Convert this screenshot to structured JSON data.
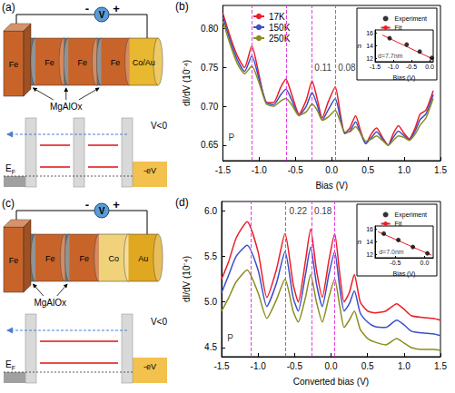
{
  "diagrams": [
    {
      "letter": "(a)",
      "voltage": {
        "symbol": "V",
        "minus": "-",
        "plus": "+"
      },
      "layers": [
        {
          "label": "Fe",
          "color": "#c8642a"
        },
        {
          "label": null,
          "color": "#6e6e6e"
        },
        {
          "label": "Fe",
          "color": "#c8642a"
        },
        {
          "label": null,
          "color": "#6e6e6e"
        },
        {
          "label": "Fe",
          "color": "#c8642a"
        },
        {
          "label": null,
          "color": "#6e6e6e"
        },
        {
          "label": "Fe",
          "color": "#c8642a"
        },
        {
          "label": "Co/Au",
          "color": "#e8b830"
        }
      ],
      "barrier_label": "MgAlOx",
      "energy": {
        "bias": "V<0",
        "shift": "-eV",
        "fermi": {
          "text": "E",
          "subscript": "F"
        }
      }
    },
    {
      "letter": "(c)",
      "voltage": {
        "symbol": "V",
        "minus": "-",
        "plus": "+"
      },
      "layers": [
        {
          "label": "Fe",
          "color": "#c8642a"
        },
        {
          "label": null,
          "color": "#6e6e6e"
        },
        {
          "label": "Fe",
          "color": "#c8642a"
        },
        {
          "label": null,
          "color": "#6e6e6e"
        },
        {
          "label": "Fe",
          "color": "#c8642a"
        },
        {
          "label": "Co",
          "color": "#f0d27a"
        },
        {
          "label": "Au",
          "color": "#e0a820"
        }
      ],
      "barrier_label": "MgAlOx",
      "energy": {
        "bias": "V<0",
        "shift": "-eV",
        "fermi": {
          "text": "E",
          "subscript": "F"
        }
      }
    }
  ],
  "chart_data": [
    {
      "letter": "(b)",
      "type": "line",
      "x_label": "Bias (V)",
      "y_label": "dI/dV (10⁻⁴)",
      "x": [
        -1.5,
        -1.4,
        -1.3,
        -1.2,
        -1.1,
        -1.0,
        -0.9,
        -0.8,
        -0.7,
        -0.63,
        -0.55,
        -0.45,
        -0.35,
        -0.27,
        -0.2,
        -0.13,
        -0.05,
        0.05,
        0.12,
        0.18,
        0.25,
        0.33,
        0.4,
        0.47,
        0.55,
        0.62,
        0.7,
        0.78,
        0.85,
        0.92,
        1.0,
        1.07,
        1.15,
        1.22,
        1.3,
        1.4
      ],
      "series": [
        {
          "name": "17K",
          "color": "#ee1c24",
          "values": [
            0.82,
            0.79,
            0.765,
            0.75,
            0.778,
            0.74,
            0.705,
            0.705,
            0.725,
            0.735,
            0.715,
            0.69,
            0.708,
            0.733,
            0.71,
            0.685,
            0.705,
            0.725,
            0.69,
            0.665,
            0.672,
            0.688,
            0.668,
            0.652,
            0.665,
            0.672,
            0.66,
            0.65,
            0.665,
            0.675,
            0.665,
            0.658,
            0.672,
            0.69,
            0.695,
            0.72
          ]
        },
        {
          "name": "150K",
          "color": "#3a4fc8",
          "values": [
            0.815,
            0.785,
            0.76,
            0.745,
            0.765,
            0.735,
            0.705,
            0.702,
            0.715,
            0.722,
            0.708,
            0.688,
            0.7,
            0.718,
            0.702,
            0.682,
            0.695,
            0.71,
            0.685,
            0.665,
            0.668,
            0.68,
            0.665,
            0.652,
            0.66,
            0.667,
            0.658,
            0.65,
            0.66,
            0.668,
            0.662,
            0.657,
            0.668,
            0.683,
            0.69,
            0.715
          ]
        },
        {
          "name": "250K",
          "color": "#8c8c1e",
          "values": [
            0.81,
            0.78,
            0.755,
            0.742,
            0.752,
            0.73,
            0.703,
            0.7,
            0.707,
            0.71,
            0.702,
            0.688,
            0.693,
            0.703,
            0.695,
            0.682,
            0.686,
            0.695,
            0.68,
            0.667,
            0.667,
            0.674,
            0.665,
            0.655,
            0.658,
            0.662,
            0.656,
            0.65,
            0.656,
            0.662,
            0.66,
            0.656,
            0.664,
            0.676,
            0.685,
            0.71
          ]
        }
      ],
      "xlim": [
        -1.5,
        1.5
      ],
      "xticks": [
        -1.5,
        {
          "value": -1,
          "label": "-1.0"
        },
        -0.5,
        {
          "value": 0,
          "label": "0.0"
        },
        0.5,
        {
          "value": 1,
          "label": "1.0"
        },
        1.5
      ],
      "ylim": [
        0.63,
        0.83
      ],
      "yticks": [
        0.65,
        {
          "value": 0.7,
          "label": "0.70"
        },
        0.75,
        {
          "value": 0.8,
          "label": "0.80"
        }
      ],
      "grid": false,
      "legend": "top",
      "reference_lines_x": [
        -1.1,
        -0.63,
        -0.27,
        0.05
      ],
      "annotations": [
        {
          "text": "P",
          "x": -1.38,
          "y": 0.66
        },
        {
          "text": "0.11",
          "x": -0.12,
          "y": 0.75
        },
        {
          "text": "0.08",
          "x": 0.21,
          "y": 0.75
        }
      ],
      "inset": {
        "type": "scatter",
        "x_label": "Bias (V)",
        "y_label": "n",
        "xlim": [
          -1.5,
          0.1
        ],
        "xticks": [
          -1.5,
          {
            "value": -1,
            "label": "-1.0"
          },
          -0.5,
          {
            "value": 0,
            "label": "0.0"
          }
        ],
        "ylim": [
          11.5,
          16.5
        ],
        "yticks": [
          12,
          14,
          16
        ],
        "legend": "top-right",
        "series": [
          {
            "name": "Experiment",
            "type": "scatter",
            "color": "#000000",
            "marker": "circle",
            "x": [
              -1.1,
              -0.63,
              -0.27,
              0.06
            ],
            "values": [
              15.2,
              14.2,
              13.1,
              12.1
            ]
          },
          {
            "name": "Fit",
            "type": "line",
            "color": "#ee1c24",
            "line_style": "solid",
            "x": [
              -1.3,
              0.1
            ],
            "values": [
              15.7,
              11.9
            ]
          }
        ],
        "annotations": [
          {
            "text": "d=7.7nm",
            "x": -1.45,
            "y": 12.5
          }
        ]
      }
    },
    {
      "letter": "(d)",
      "type": "line",
      "x_label": "Converted bias (V)",
      "y_label": "dI/dV (10⁻⁴)",
      "x": [
        -1.5,
        -1.4,
        -1.3,
        -1.15,
        -1.0,
        -0.88,
        -0.75,
        -0.63,
        -0.52,
        -0.45,
        -0.35,
        -0.28,
        -0.2,
        -0.12,
        -0.03,
        0.05,
        0.12,
        0.18,
        0.25,
        0.32,
        0.4,
        0.5,
        0.6,
        0.75,
        0.9,
        1.0,
        1.1,
        1.25,
        1.4,
        1.5
      ],
      "series": [
        {
          "color": "#ee1c24",
          "values": [
            5.25,
            5.45,
            5.7,
            5.88,
            5.55,
            5.05,
            5.35,
            5.75,
            5.2,
            5.0,
            5.45,
            5.8,
            5.35,
            5.05,
            5.45,
            5.75,
            5.3,
            5.0,
            5.1,
            5.3,
            5.0,
            4.9,
            4.88,
            4.9,
            4.98,
            4.92,
            4.85,
            4.83,
            4.82,
            4.8
          ]
        },
        {
          "color": "#3a4fc8",
          "values": [
            5.1,
            5.3,
            5.5,
            5.62,
            5.35,
            4.95,
            5.2,
            5.55,
            5.05,
            4.9,
            5.3,
            5.6,
            5.2,
            4.95,
            5.3,
            5.55,
            5.15,
            4.9,
            4.98,
            5.12,
            4.88,
            4.78,
            4.73,
            4.72,
            4.8,
            4.75,
            4.68,
            4.66,
            4.65,
            4.63
          ]
        },
        {
          "color": "#8c8c1e",
          "values": [
            4.9,
            5.05,
            5.22,
            5.35,
            5.1,
            4.82,
            5.02,
            5.25,
            4.9,
            4.78,
            5.05,
            5.3,
            5.0,
            4.78,
            5.05,
            5.25,
            4.95,
            4.72,
            4.8,
            4.9,
            4.7,
            4.6,
            4.56,
            4.53,
            4.6,
            4.55,
            4.5,
            4.48,
            4.48,
            4.47
          ]
        }
      ],
      "xlim": [
        -1.5,
        1.5
      ],
      "xticks": [
        -1.5,
        {
          "value": -1,
          "label": "-1.0"
        },
        -0.5,
        {
          "value": 0,
          "label": "0.0"
        },
        0.5,
        {
          "value": 1,
          "label": "1.0"
        },
        1.5
      ],
      "ylim": [
        4.4,
        6.1
      ],
      "yticks": [
        4.5,
        {
          "value": 5,
          "label": "5.0"
        },
        5.5,
        {
          "value": 6,
          "label": "6.0"
        }
      ],
      "grid": false,
      "reference_lines_x": [
        -1.1,
        -0.63,
        -0.27,
        0.05
      ],
      "annotations": [
        {
          "text": "P",
          "x": -1.38,
          "y": 4.6
        },
        {
          "text": "0.22",
          "x": -0.45,
          "y": 6.0
        },
        {
          "text": "0.18",
          "x": -0.11,
          "y": 6.0
        }
      ],
      "inset": {
        "type": "scatter",
        "x_label": "Bias (V)",
        "y_label": "n",
        "xlim": [
          -0.85,
          0.15
        ],
        "xticks": [
          -0.5,
          {
            "value": 0,
            "label": "0.0"
          }
        ],
        "ylim": [
          11.5,
          16.5
        ],
        "yticks": [
          12,
          14,
          16
        ],
        "legend": "top-right",
        "series": [
          {
            "name": "Experiment",
            "type": "scatter",
            "color": "#000000",
            "marker": "circle",
            "x": [
              -0.7,
              -0.45,
              -0.2,
              0.05
            ],
            "values": [
              15.3,
              14.3,
              13.2,
              12.2
            ]
          },
          {
            "name": "Fit",
            "type": "line",
            "color": "#ee1c24",
            "line_style": "solid",
            "x": [
              -0.8,
              0.12
            ],
            "values": [
              15.6,
              11.9
            ]
          }
        ],
        "annotations": [
          {
            "text": "d=7.0nm",
            "x": -0.8,
            "y": 12.5
          }
        ]
      }
    }
  ]
}
